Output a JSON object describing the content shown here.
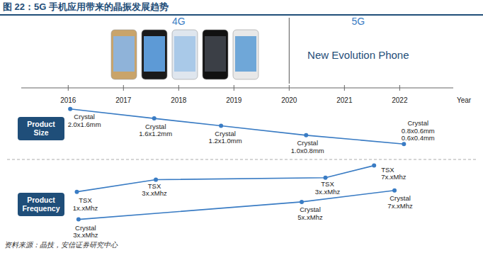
{
  "chart_data": {
    "type": "line",
    "title": "图 22：5G 手机应用带来的晶振发展趋势",
    "source": "资料来源：晶技，安信证券研究中心",
    "x_label": "Year",
    "xlim": [
      2015.15,
      2022.97
    ],
    "xticks": [
      2016,
      2017,
      2018,
      2019,
      2020,
      2021,
      2022
    ],
    "ylim": [
      0,
      100
    ],
    "tick_labels": "x",
    "eras": [
      {
        "label": "4G",
        "from": 2016,
        "to": 2020
      },
      {
        "label": "5G",
        "note": "New Evolution Phone",
        "from": 2020,
        "to": 2022.5
      }
    ],
    "panels": [
      {
        "name": "Product Size",
        "series": [
          {
            "name": "Crystal",
            "color": "#3a7cc4",
            "x": [
              2016.03,
              2017.55,
              2018.76,
              2020.3,
              2022.07
            ],
            "values": [
              93,
              86,
              80.5,
              73.5,
              67
            ],
            "value_labels": [
              "Crystal\n2.0x1.6mm",
              "Crystal\n1.6x1.2mm",
              "Crystal\n1.2x1.0mm",
              "Crystal\n1.0x0.8mm",
              "Crystal\n0.8x0.6mm\n0.6x0.4mm"
            ]
          }
        ]
      },
      {
        "name": "Product Frequency",
        "series": [
          {
            "name": "TSX",
            "color": "#3a7cc4",
            "x": [
              2016.15,
              2017.58,
              2020.65,
              2021.53
            ],
            "values": [
              31.5,
              40.5,
              42,
              51
            ],
            "value_labels": [
              "TSX\n1x.xMhz",
              "TSX\n3x.xMhz",
              "TSX\n3x.xMhz",
              "TSX\n7x.xMhz"
            ]
          },
          {
            "name": "Crystal",
            "color": "#3a7cc4",
            "x": [
              2016.18,
              2020.22,
              2021.9
            ],
            "values": [
              11,
              24,
              32.5
            ],
            "value_labels": [
              "Crystal\n3x.xMhz",
              "Crystal\n5x.xMhz",
              "Crystal\n7x.xMhz"
            ]
          }
        ]
      }
    ]
  }
}
